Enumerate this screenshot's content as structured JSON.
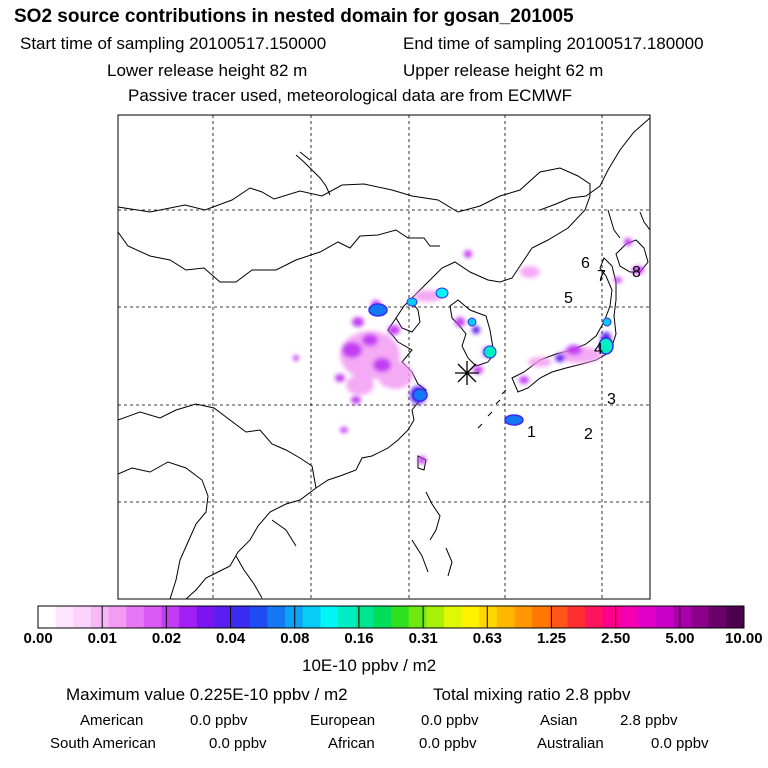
{
  "header": {
    "title": "SO2 source contributions in nested domain for gosan_201005",
    "start_time": "Start time of sampling 20100517.150000",
    "end_time": "End time of sampling 20100517.180000",
    "lower_height": "Lower release height   82 m",
    "upper_height": "Upper release height   62 m",
    "tracer_note": "Passive tracer used, meteorological data are from ECMWF"
  },
  "map": {
    "region_labels": [
      "1",
      "2",
      "3",
      "4",
      "5",
      "6",
      "7",
      "8"
    ],
    "receptor_marker": "gosan receptor (asterisk)"
  },
  "colorbar": {
    "colors": [
      "#ffffff",
      "#fde6fd",
      "#fbd2fb",
      "#f7b8f7",
      "#f39cf3",
      "#e877f7",
      "#d85bf5",
      "#c23cf4",
      "#a31ef2",
      "#7c14f0",
      "#5a1ff0",
      "#3a2cf0",
      "#1f4cf2",
      "#1478f4",
      "#0ea4f6",
      "#08ccf8",
      "#00f5f5",
      "#00eec4",
      "#00e690",
      "#00de5a",
      "#2fe01f",
      "#6ee810",
      "#a8f00a",
      "#e0f805",
      "#fff200",
      "#ffd600",
      "#ffb800",
      "#ff9800",
      "#ff7800",
      "#ff5518",
      "#ff2f30",
      "#ff1460",
      "#ff008c",
      "#f500b0",
      "#e000c8",
      "#c800c8",
      "#aa00aa",
      "#8a0089",
      "#6a006a",
      "#4d004d"
    ],
    "ticks": [
      "0.00",
      "0.01",
      "0.02",
      "0.04",
      "0.08",
      "0.16",
      "0.31",
      "0.63",
      "1.25",
      "2.50",
      "5.00",
      "10.00"
    ],
    "unit_label": "10E-10 ppbv / m2"
  },
  "summary": {
    "max_value": "Maximum value  0.225E-10 ppbv / m2",
    "total": "Total mixing ratio       2.8 ppbv",
    "regions": [
      {
        "name": "American",
        "value": "0.0 ppbv"
      },
      {
        "name": "European",
        "value": "0.0 ppbv"
      },
      {
        "name": "Asian",
        "value": "2.8 ppbv"
      },
      {
        "name": "South American",
        "value": "0.0 ppbv"
      },
      {
        "name": "African",
        "value": "0.0 ppbv"
      },
      {
        "name": "Australian",
        "value": "0.0 ppbv"
      }
    ]
  },
  "chart_data": {
    "type": "heatmap",
    "title": "SO2 source contributions in nested domain for gosan_201005",
    "colorbar_ticks": [
      0.0,
      0.01,
      0.02,
      0.04,
      0.08,
      0.16,
      0.31,
      0.63,
      1.25,
      2.5,
      5.0,
      10.0
    ],
    "units": "10E-10 ppbv / m2",
    "max_value": 0.225,
    "total_mixing_ratio_ppbv": 2.8
  }
}
